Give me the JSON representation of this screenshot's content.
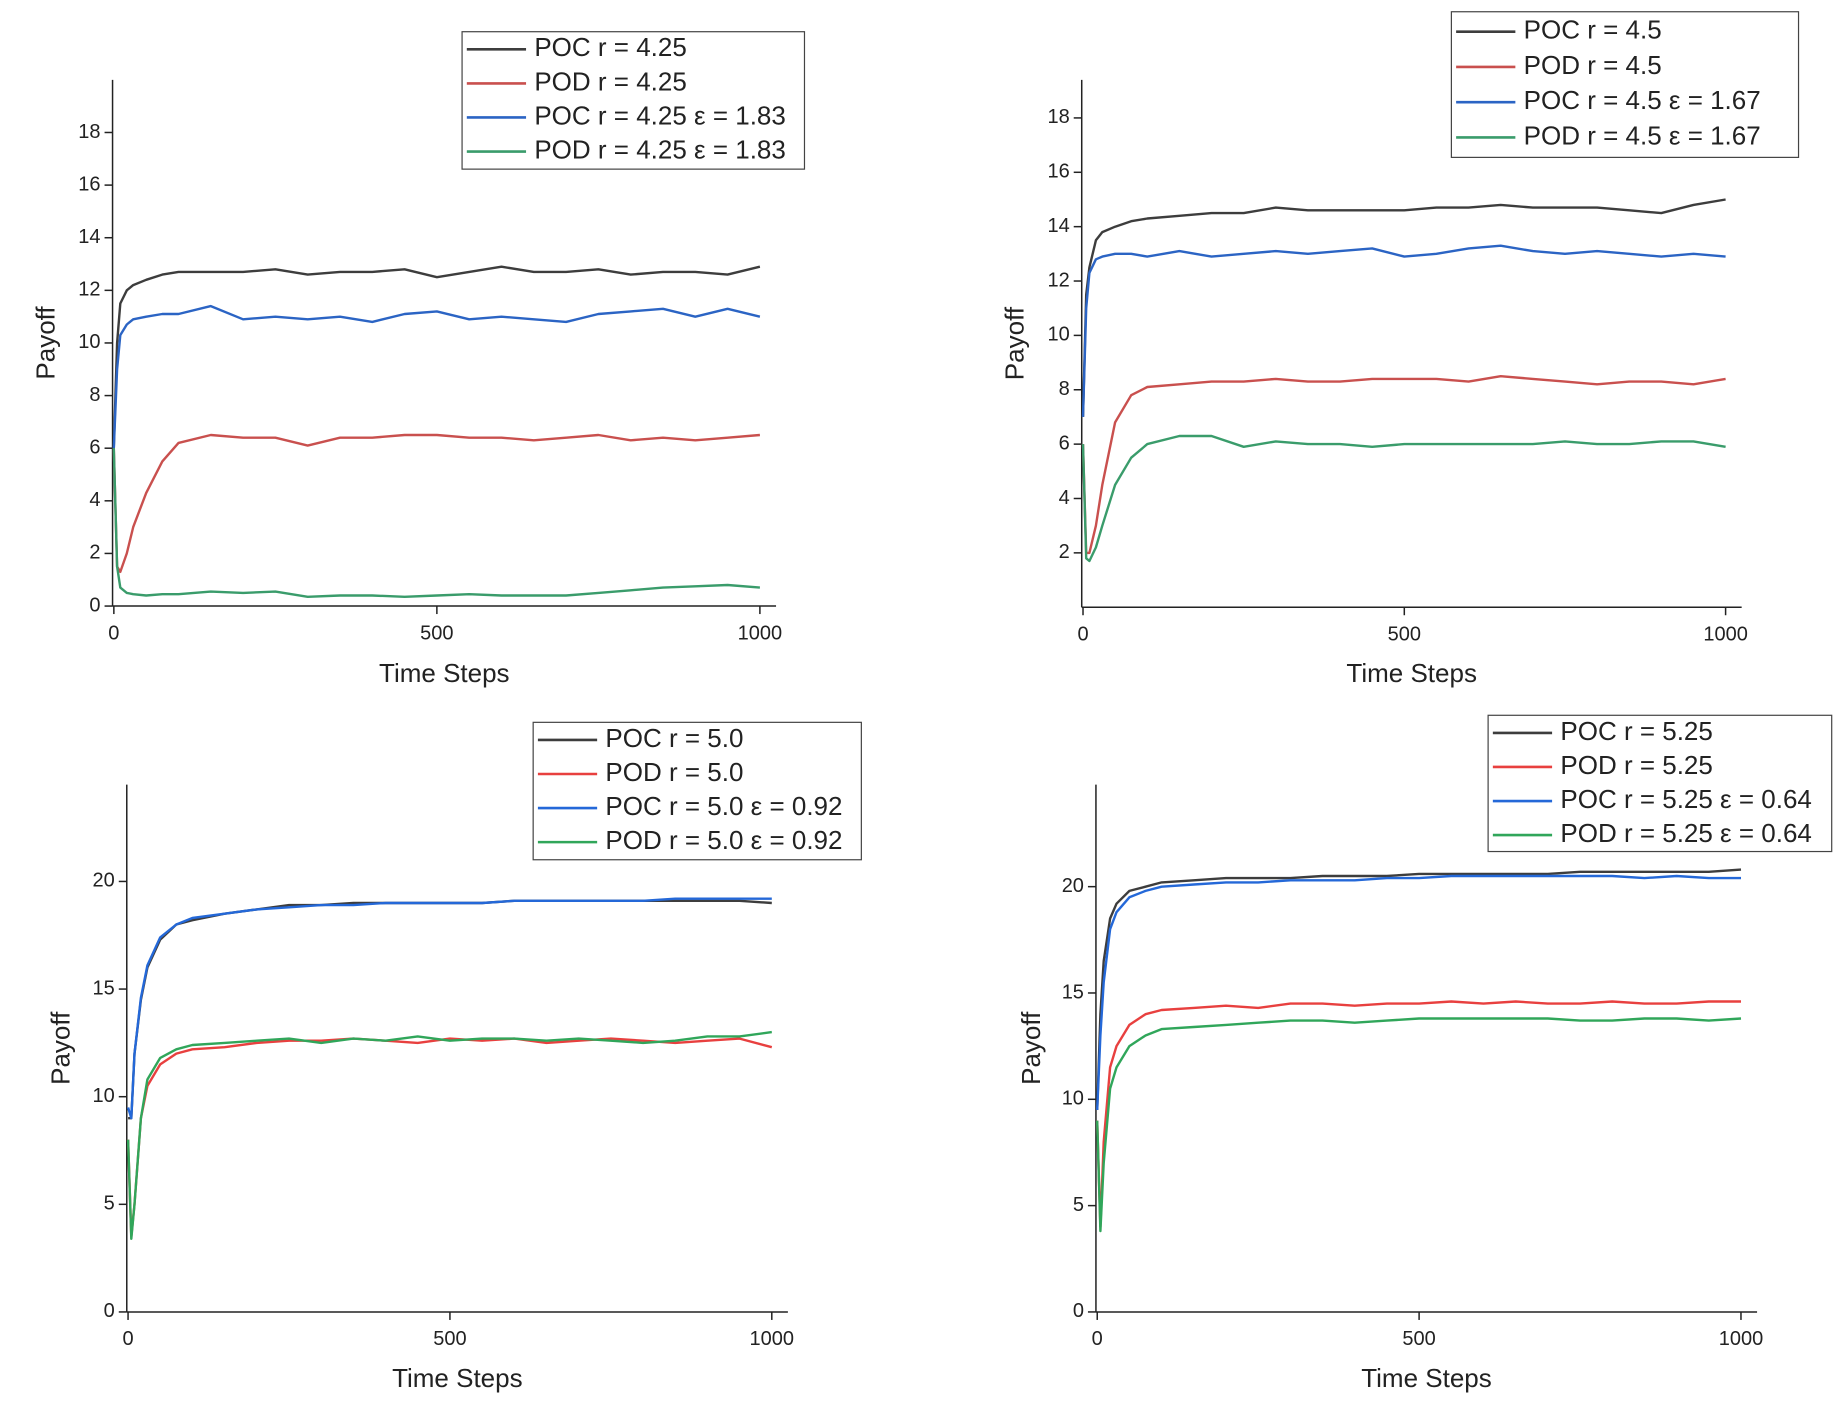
{
  "chart_data": [
    {
      "type": "line",
      "xlabel": "Time Steps",
      "ylabel": "Payoff",
      "x": [
        0,
        5,
        10,
        20,
        30,
        50,
        75,
        100,
        150,
        200,
        250,
        300,
        350,
        400,
        450,
        500,
        550,
        600,
        650,
        700,
        750,
        800,
        850,
        900,
        950,
        1000
      ],
      "xlim": [
        -2,
        1025
      ],
      "xticks": [
        0,
        500,
        1000
      ],
      "ylim": [
        0,
        20
      ],
      "yticks": [
        0,
        2,
        4,
        6,
        8,
        10,
        12,
        14,
        16,
        18
      ],
      "series": [
        {
          "name": "POC r = 4.25",
          "color": "#3d3d3d",
          "values": [
            6,
            10,
            11.5,
            12,
            12.2,
            12.4,
            12.6,
            12.7,
            12.7,
            12.7,
            12.8,
            12.6,
            12.7,
            12.7,
            12.8,
            12.5,
            12.7,
            12.9,
            12.7,
            12.7,
            12.8,
            12.6,
            12.7,
            12.7,
            12.6,
            12.9
          ]
        },
        {
          "name": "POD r = 4.25",
          "color": "#c9504e",
          "values": [
            6,
            1.5,
            1.3,
            2,
            3,
            4.3,
            5.5,
            6.2,
            6.5,
            6.4,
            6.4,
            6.1,
            6.4,
            6.4,
            6.5,
            6.5,
            6.4,
            6.4,
            6.3,
            6.4,
            6.5,
            6.3,
            6.4,
            6.3,
            6.4,
            6.5
          ]
        },
        {
          "name": "POC r = 4.25 ε = 1.83",
          "color": "#2b64c4",
          "values": [
            6,
            9,
            10.3,
            10.7,
            10.9,
            11,
            11.1,
            11.1,
            11.4,
            10.9,
            11,
            10.9,
            11,
            10.8,
            11.1,
            11.2,
            10.9,
            11,
            10.9,
            10.8,
            11.1,
            11.2,
            11.3,
            11,
            11.3,
            11
          ]
        },
        {
          "name": "POD r = 4.25 ε = 1.83",
          "color": "#3a9c6b",
          "values": [
            6,
            1.5,
            0.7,
            0.5,
            0.45,
            0.4,
            0.45,
            0.45,
            0.55,
            0.5,
            0.55,
            0.35,
            0.4,
            0.4,
            0.35,
            0.4,
            0.45,
            0.4,
            0.4,
            0.4,
            0.5,
            0.6,
            0.7,
            0.75,
            0.8,
            0.7
          ]
        }
      ]
    },
    {
      "type": "line",
      "xlabel": "Time Steps",
      "ylabel": "Payoff",
      "x": [
        0,
        5,
        10,
        20,
        30,
        50,
        75,
        100,
        150,
        200,
        250,
        300,
        350,
        400,
        450,
        500,
        550,
        600,
        650,
        700,
        750,
        800,
        850,
        900,
        950,
        1000
      ],
      "xlim": [
        -2,
        1025
      ],
      "xticks": [
        0,
        500,
        1000
      ],
      "ylim": [
        0,
        19.4
      ],
      "yticks": [
        2,
        4,
        6,
        8,
        10,
        12,
        14,
        16,
        18
      ],
      "series": [
        {
          "name": "POC r = 4.5",
          "color": "#3d3d3d",
          "values": [
            7,
            11.5,
            12.5,
            13.5,
            13.8,
            14,
            14.2,
            14.3,
            14.4,
            14.5,
            14.5,
            14.7,
            14.6,
            14.6,
            14.6,
            14.6,
            14.7,
            14.7,
            14.8,
            14.7,
            14.7,
            14.7,
            14.6,
            14.5,
            14.8,
            15
          ]
        },
        {
          "name": "POD r = 4.5",
          "color": "#c9504e",
          "values": [
            6,
            2,
            2,
            3,
            4.5,
            6.8,
            7.8,
            8.1,
            8.2,
            8.3,
            8.3,
            8.4,
            8.3,
            8.3,
            8.4,
            8.4,
            8.4,
            8.3,
            8.5,
            8.4,
            8.3,
            8.2,
            8.3,
            8.3,
            8.2,
            8.4
          ]
        },
        {
          "name": "POC r = 4.5 ε = 1.67",
          "color": "#2b64c4",
          "values": [
            7,
            11,
            12.3,
            12.8,
            12.9,
            13,
            13,
            12.9,
            13.1,
            12.9,
            13,
            13.1,
            13,
            13.1,
            13.2,
            12.9,
            13,
            13.2,
            13.3,
            13.1,
            13,
            13.1,
            13,
            12.9,
            13,
            12.9
          ]
        },
        {
          "name": "POD r = 4.5 ε = 1.67",
          "color": "#3a9c6b",
          "values": [
            6,
            1.8,
            1.7,
            2.2,
            3,
            4.5,
            5.5,
            6,
            6.3,
            6.3,
            5.9,
            6.1,
            6,
            6,
            5.9,
            6,
            6,
            6,
            6,
            6,
            6.1,
            6,
            6,
            6.1,
            6.1,
            5.9
          ]
        }
      ]
    },
    {
      "type": "line",
      "xlabel": "Time Steps",
      "ylabel": "Payoff",
      "x": [
        0,
        5,
        10,
        20,
        30,
        50,
        75,
        100,
        150,
        200,
        250,
        300,
        350,
        400,
        450,
        500,
        550,
        600,
        650,
        700,
        750,
        800,
        850,
        900,
        950,
        1000
      ],
      "xlim": [
        -2,
        1025
      ],
      "xticks": [
        0,
        500,
        1000
      ],
      "ylim": [
        0,
        24.5
      ],
      "yticks": [
        0,
        5,
        10,
        15,
        20
      ],
      "series": [
        {
          "name": "POC r = 5.0",
          "color": "#3d3d3d",
          "values": [
            9,
            9,
            12,
            14.5,
            16,
            17.3,
            18,
            18.2,
            18.5,
            18.7,
            18.9,
            18.9,
            19,
            19,
            19,
            19,
            19,
            19.1,
            19.1,
            19.1,
            19.1,
            19.1,
            19.1,
            19.1,
            19.1,
            19
          ]
        },
        {
          "name": "POD r = 5.0",
          "color": "#e8403f",
          "values": [
            8,
            3.5,
            5,
            9,
            10.5,
            11.5,
            12,
            12.2,
            12.3,
            12.5,
            12.6,
            12.6,
            12.7,
            12.6,
            12.5,
            12.7,
            12.6,
            12.7,
            12.5,
            12.6,
            12.7,
            12.6,
            12.5,
            12.6,
            12.7,
            12.3
          ]
        },
        {
          "name": "POC r = 5.0 ε = 0.92",
          "color": "#2468d8",
          "values": [
            9.5,
            9,
            12,
            14.6,
            16.1,
            17.4,
            18,
            18.3,
            18.5,
            18.7,
            18.8,
            18.9,
            18.9,
            19,
            19,
            19,
            19,
            19.1,
            19.1,
            19.1,
            19.1,
            19.1,
            19.2,
            19.2,
            19.2,
            19.2
          ]
        },
        {
          "name": "POD r = 5.0 ε = 0.92",
          "color": "#30a65a",
          "values": [
            8,
            3.4,
            5,
            9,
            10.8,
            11.8,
            12.2,
            12.4,
            12.5,
            12.6,
            12.7,
            12.5,
            12.7,
            12.6,
            12.8,
            12.6,
            12.7,
            12.7,
            12.6,
            12.7,
            12.6,
            12.5,
            12.6,
            12.8,
            12.8,
            13
          ]
        }
      ]
    },
    {
      "type": "line",
      "xlabel": "Time Steps",
      "ylabel": "Payoff",
      "x": [
        0,
        5,
        10,
        20,
        30,
        50,
        75,
        100,
        150,
        200,
        250,
        300,
        350,
        400,
        450,
        500,
        550,
        600,
        650,
        700,
        750,
        800,
        850,
        900,
        950,
        1000
      ],
      "xlim": [
        -2,
        1025
      ],
      "xticks": [
        0,
        500,
        1000
      ],
      "ylim": [
        0,
        24.8
      ],
      "yticks": [
        0,
        5,
        10,
        15,
        20
      ],
      "series": [
        {
          "name": "POC r = 5.25",
          "color": "#3d3d3d",
          "values": [
            9.5,
            14,
            16.5,
            18.5,
            19.2,
            19.8,
            20,
            20.2,
            20.3,
            20.4,
            20.4,
            20.4,
            20.5,
            20.5,
            20.5,
            20.6,
            20.6,
            20.6,
            20.6,
            20.6,
            20.7,
            20.7,
            20.7,
            20.7,
            20.7,
            20.8
          ]
        },
        {
          "name": "POD r = 5.25",
          "color": "#e8403f",
          "values": [
            9,
            4,
            8,
            11.5,
            12.5,
            13.5,
            14,
            14.2,
            14.3,
            14.4,
            14.3,
            14.5,
            14.5,
            14.4,
            14.5,
            14.5,
            14.6,
            14.5,
            14.6,
            14.5,
            14.5,
            14.6,
            14.5,
            14.5,
            14.6,
            14.6
          ]
        },
        {
          "name": "POC r = 5.25 ε = 0.64",
          "color": "#2468d8",
          "values": [
            9.5,
            13,
            15.5,
            18,
            18.8,
            19.5,
            19.8,
            20,
            20.1,
            20.2,
            20.2,
            20.3,
            20.3,
            20.3,
            20.4,
            20.4,
            20.5,
            20.5,
            20.5,
            20.5,
            20.5,
            20.5,
            20.4,
            20.5,
            20.4,
            20.4
          ]
        },
        {
          "name": "POD r = 5.25 ε = 0.64",
          "color": "#30a65a",
          "values": [
            9,
            3.8,
            7,
            10.5,
            11.5,
            12.5,
            13,
            13.3,
            13.4,
            13.5,
            13.6,
            13.7,
            13.7,
            13.6,
            13.7,
            13.8,
            13.8,
            13.8,
            13.8,
            13.8,
            13.7,
            13.7,
            13.8,
            13.8,
            13.7,
            13.8
          ]
        }
      ]
    }
  ]
}
